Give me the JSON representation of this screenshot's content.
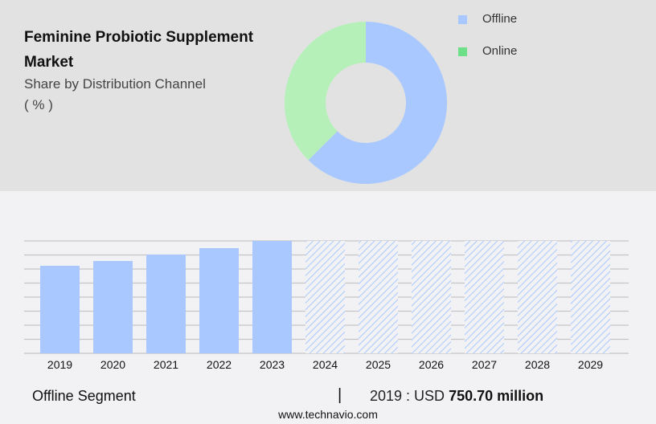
{
  "header": {
    "title": "Feminine Probiotic Supplement Market",
    "subtitle": "Share by Distribution Channel",
    "unit": "( % )"
  },
  "chart_data": [
    {
      "type": "pie",
      "variant": "donut",
      "title": "Feminine Probiotic Supplement Market",
      "subtitle": "Share by Distribution Channel ( % )",
      "categories": [
        "Offline",
        "Online"
      ],
      "values": [
        62.5,
        37.5
      ],
      "colors": [
        "#a8c8ff",
        "#b5f0b8"
      ],
      "legend_colors": [
        "#a8c8ff",
        "#6ee08a"
      ],
      "legend": "top-right"
    },
    {
      "type": "bar",
      "categories": [
        "2019",
        "2020",
        "2021",
        "2022",
        "2023",
        "2024",
        "2025",
        "2026",
        "2027",
        "2028",
        "2029"
      ],
      "series": [
        {
          "name": "Offline Segment",
          "values": [
            750.7,
            792,
            847,
            902,
            964,
            null,
            null,
            null,
            null,
            null,
            null
          ]
        }
      ],
      "forecast_years": [
        "2024",
        "2025",
        "2026",
        "2027",
        "2028",
        "2029"
      ],
      "forecast_style": "hatched",
      "ylim": [
        0,
        964
      ],
      "grid": true,
      "color": "#a8c8ff"
    }
  ],
  "footer": {
    "segment": "Offline Segment",
    "separator": "|",
    "year_label": "2019 : USD",
    "value": "750.70 million",
    "site": "www.technavio.com"
  }
}
